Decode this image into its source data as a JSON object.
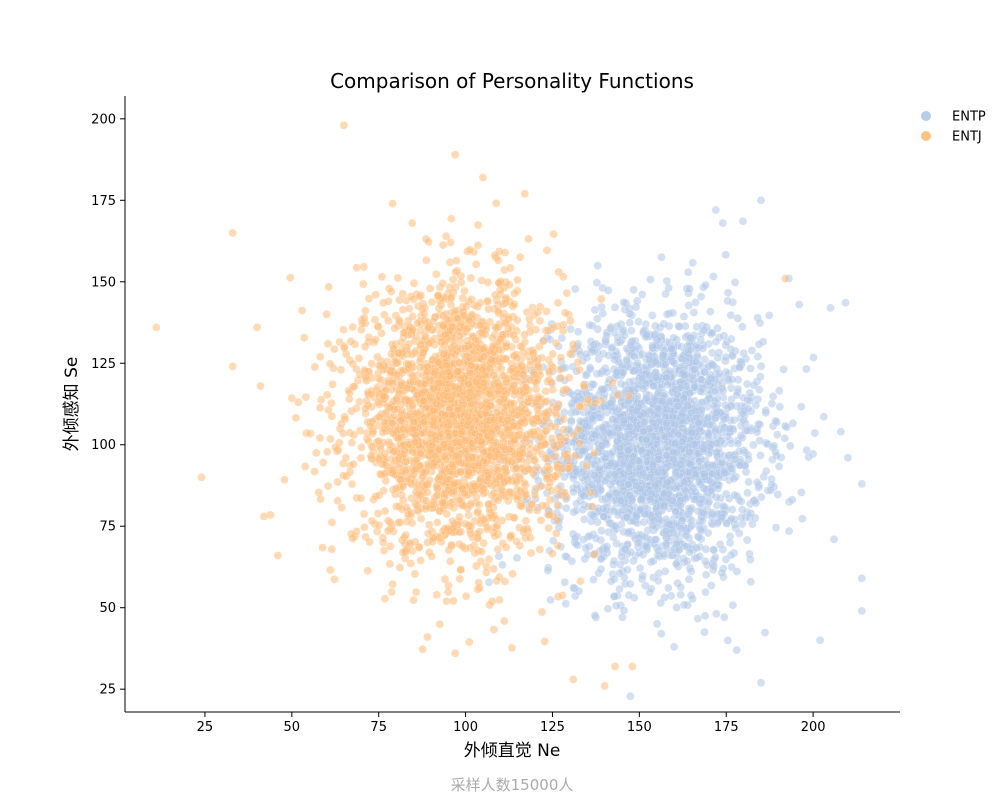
{
  "chart_data": {
    "type": "scatter",
    "title": "Comparison of Personality Functions",
    "xlabel": "外倾直觉 Ne",
    "ylabel": "外倾感知 Se",
    "footer_note": "采样人数15000人",
    "xlim": [
      2,
      225
    ],
    "ylim": [
      18,
      207
    ],
    "xticks": [
      25,
      50,
      75,
      100,
      125,
      150,
      175,
      200
    ],
    "yticks": [
      25,
      50,
      75,
      100,
      125,
      150,
      175,
      200
    ],
    "grid": false,
    "legend_position": "top-right",
    "point_opacity": 0.55,
    "series": [
      {
        "name": "ENTP",
        "color": "#aec7e8",
        "distribution": {
          "mean_x": 155,
          "mean_y": 100,
          "sd_x": 15,
          "sd_y": 20
        },
        "sample_points": [
          [
            185,
            175
          ],
          [
            172,
            172
          ],
          [
            174,
            168
          ],
          [
            205,
            142
          ],
          [
            214,
            88
          ],
          [
            214,
            59
          ],
          [
            214,
            49
          ],
          [
            202,
            40
          ],
          [
            185,
            27
          ],
          [
            160,
            38
          ],
          [
            178,
            37
          ],
          [
            210,
            96
          ],
          [
            208,
            104
          ],
          [
            206,
            71
          ],
          [
            193,
            151
          ],
          [
            196,
            143
          ]
        ]
      },
      {
        "name": "ENTJ",
        "color": "#ffbb78",
        "distribution": {
          "mean_x": 98,
          "mean_y": 108,
          "sd_x": 15,
          "sd_y": 20
        },
        "sample_points": [
          [
            65,
            198
          ],
          [
            97,
            189
          ],
          [
            105,
            182
          ],
          [
            117,
            177
          ],
          [
            79,
            174
          ],
          [
            33,
            165
          ],
          [
            11,
            136
          ],
          [
            40,
            136
          ],
          [
            33,
            124
          ],
          [
            41,
            118
          ],
          [
            24,
            90
          ],
          [
            42,
            78
          ],
          [
            46,
            66
          ],
          [
            140,
            26
          ],
          [
            131,
            28
          ],
          [
            97,
            36
          ],
          [
            89,
            41
          ],
          [
            143,
            32
          ],
          [
            148,
            32
          ],
          [
            192,
            151
          ]
        ]
      }
    ]
  }
}
